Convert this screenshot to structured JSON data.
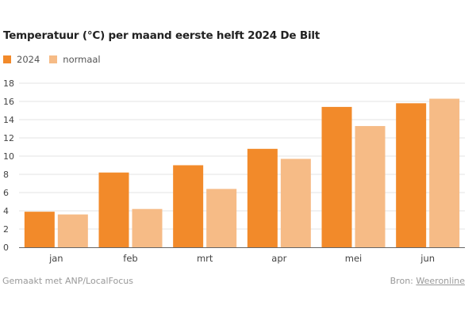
{
  "colors": {
    "series_2024": "#f28a2a",
    "series_normaal": "#f6bb86",
    "grid": "#e3e3e3",
    "axis": "#666666",
    "tick_text": "#444444"
  },
  "chart_data": {
    "type": "bar",
    "title": "Temperatuur (°C) per maand eerste helft 2024 De Bilt",
    "xlabel": "",
    "ylabel": "",
    "categories": [
      "jan",
      "feb",
      "mrt",
      "apr",
      "mei",
      "jun"
    ],
    "series": [
      {
        "name": "2024",
        "values": [
          3.9,
          8.2,
          9.0,
          10.8,
          15.4,
          15.8
        ]
      },
      {
        "name": "normaal",
        "values": [
          3.6,
          4.2,
          6.4,
          9.7,
          13.3,
          16.3
        ]
      }
    ],
    "ylim": [
      0,
      18
    ],
    "yticks": [
      "0",
      "2",
      "4",
      "6",
      "8",
      "10",
      "12",
      "14",
      "16",
      "18"
    ],
    "grid": true,
    "legend_position": "top-left"
  },
  "footer": {
    "credit": "Gemaakt met ANP/LocalFocus",
    "source_label": "Bron:",
    "source_link": "Weeronline"
  }
}
